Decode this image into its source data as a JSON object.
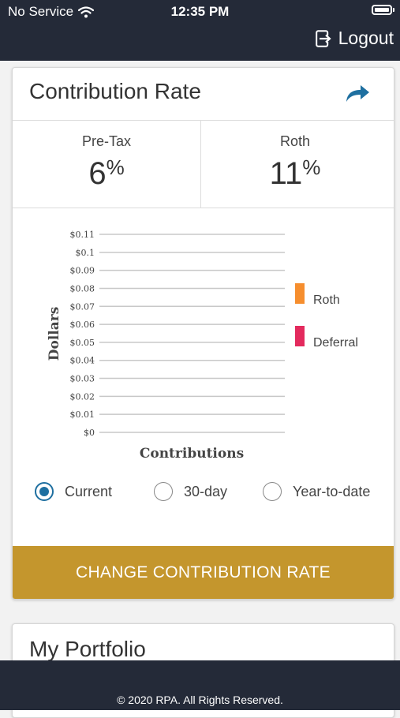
{
  "status_bar": {
    "carrier": "No Service",
    "time": "12:35 PM"
  },
  "header": {
    "logout_label": "Logout",
    "logout_icon": "logout-icon"
  },
  "contribution_card": {
    "title": "Contribution Rate",
    "share_icon": "share-arrow-icon",
    "pretax": {
      "label": "Pre-Tax",
      "value": "6",
      "unit": "%"
    },
    "roth": {
      "label": "Roth",
      "value": "11",
      "unit": "%"
    },
    "radio_options": [
      {
        "label": "Current",
        "selected": true
      },
      {
        "label": "30-day",
        "selected": false
      },
      {
        "label": "Year-to-date",
        "selected": false
      }
    ],
    "cta_label": "CHANGE CONTRIBUTION RATE"
  },
  "chart_data": {
    "type": "bar",
    "xlabel": "Contributions",
    "ylabel": "Dollars",
    "ylim": [
      0,
      0.11
    ],
    "y_ticks": [
      "$0",
      "$0.01",
      "$0.02",
      "$0.03",
      "$0.04",
      "$0.05",
      "$0.06",
      "$0.07",
      "$0.08",
      "$0.09",
      "$0.1",
      "$0.11"
    ],
    "grid": true,
    "legend_position": "right",
    "categories": [],
    "series": [
      {
        "name": "Roth",
        "color": "#f68e2e",
        "values": []
      },
      {
        "name": "Deferral",
        "color": "#e32a5d",
        "values": []
      }
    ]
  },
  "portfolio_card": {
    "title": "My Portfolio"
  },
  "footer": {
    "copyright": "© 2020 RPA. All Rights Reserved."
  },
  "colors": {
    "header_bg": "#242a38",
    "accent_blue": "#1e6fa0",
    "cta_gold": "#c4962d"
  }
}
